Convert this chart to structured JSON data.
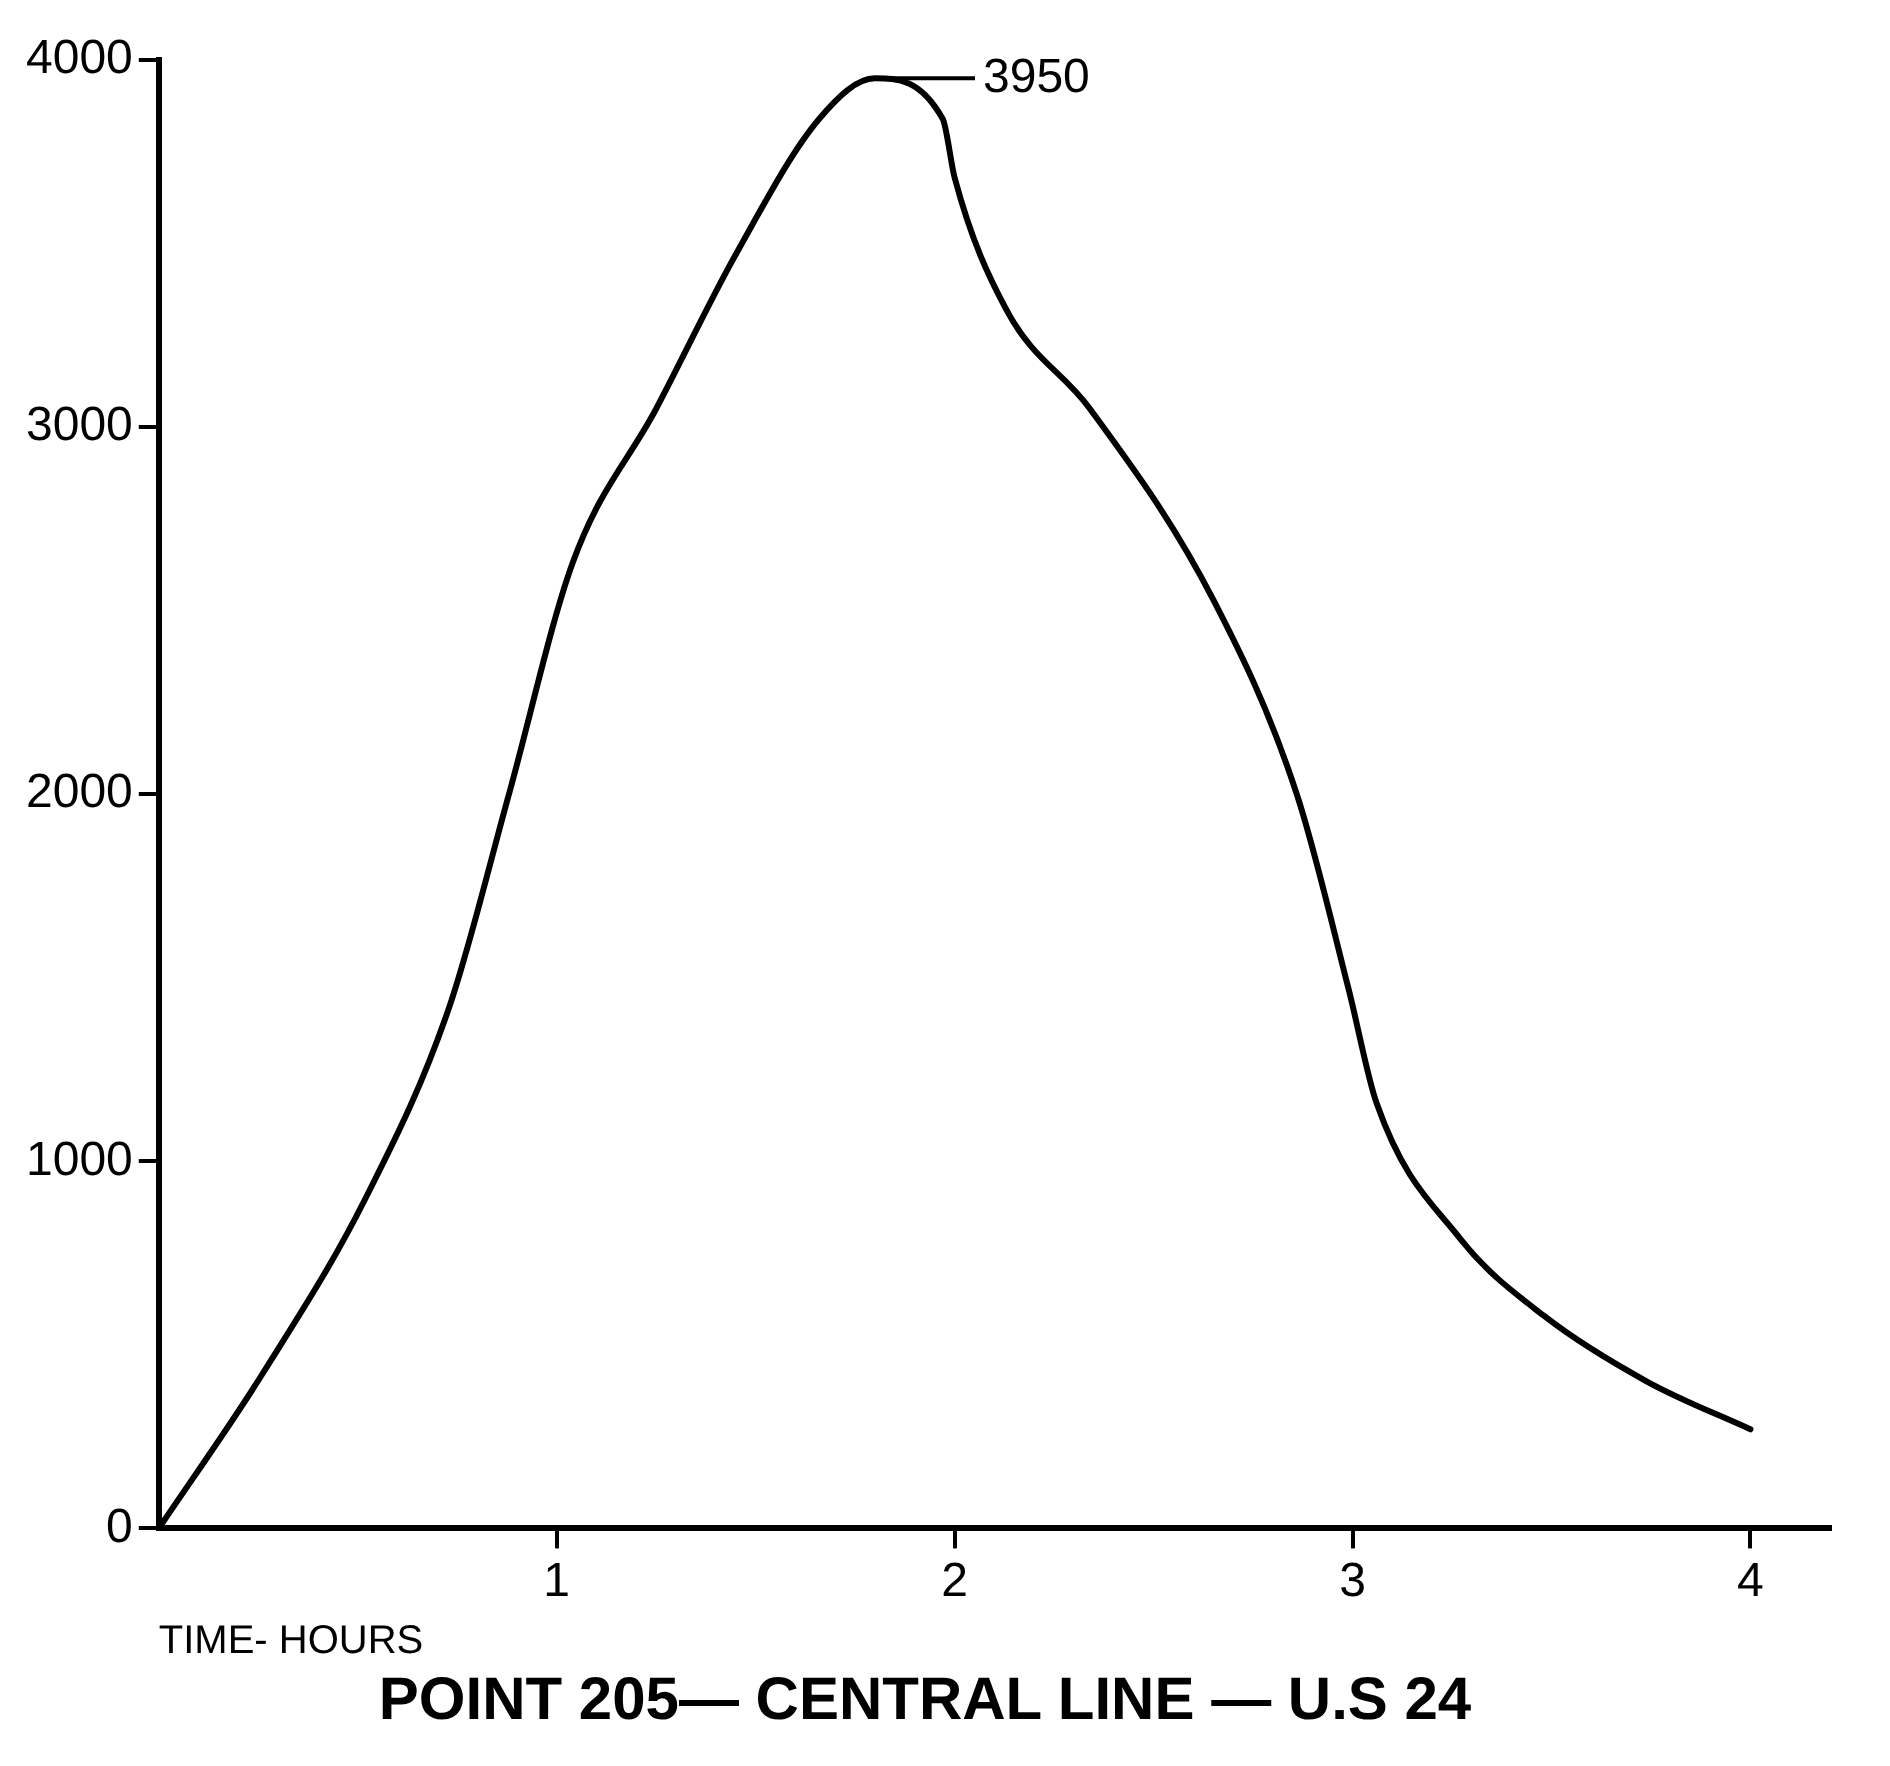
{
  "chart_data": {
    "type": "line",
    "title": "POINT 205— CENTRAL LINE — U.S 24",
    "xlabel": "TIME- HOURS",
    "x": [
      0,
      0.26,
      0.52,
      0.73,
      0.88,
      1.04,
      1.25,
      1.45,
      1.66,
      1.8,
      1.97,
      2.0,
      2.13,
      2.34,
      2.65,
      2.86,
      2.99,
      3.06,
      3.27,
      3.48,
      3.74,
      4.0
    ],
    "series": [
      {
        "color": "#000000",
        "values": [
          0,
          420,
          900,
          1420,
          2000,
          2630,
          3050,
          3470,
          3840,
          3950,
          3840,
          3680,
          3320,
          3050,
          2530,
          2000,
          1470,
          1160,
          790,
          580,
          400,
          270
        ]
      }
    ],
    "xlim": [
      0,
      4.2
    ],
    "xticks": [
      1,
      2,
      3,
      4
    ],
    "ylim": [
      0,
      4000
    ],
    "yticks": [
      0,
      1000,
      2000,
      3000,
      4000
    ],
    "annotations": [
      {
        "text": "3950",
        "x": 1.8,
        "y": 3950
      }
    ],
    "grid": false,
    "legend": false,
    "marker": "none",
    "line_style": "solid"
  }
}
